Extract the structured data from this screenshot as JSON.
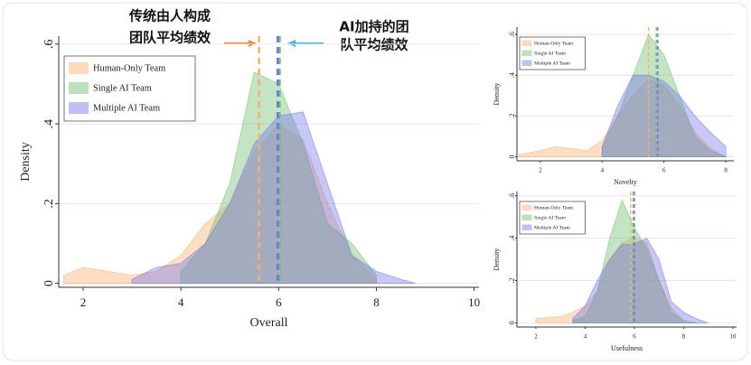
{
  "chart_data": [
    {
      "type": "density",
      "xlabel": "Overall",
      "ylabel": "Density",
      "annotations": [
        {
          "lines": [
            "传统由人构成",
            "团队平均绩效"
          ]
        },
        {
          "lines": [
            "AI加持的团",
            "队平均绩效"
          ]
        }
      ],
      "x": [
        1.6,
        2,
        2.5,
        3,
        3.5,
        4,
        4.5,
        5,
        5.5,
        6,
        6.5,
        7,
        7.5,
        8,
        8.5,
        8.8
      ],
      "series": [
        {
          "name": "Human-Only Team",
          "color": "#f7b06a",
          "mean": 5.6,
          "values": [
            0.02,
            0.04,
            0.03,
            0.02,
            0.03,
            0.07,
            0.15,
            0.2,
            0.33,
            0.4,
            0.36,
            0.2,
            0.07,
            0.01,
            null,
            null
          ]
        },
        {
          "name": "Single AI Team",
          "color": "#6cbf69",
          "mean": 6.02,
          "values": [
            null,
            null,
            null,
            null,
            null,
            0.03,
            0.1,
            0.25,
            0.53,
            0.5,
            0.35,
            0.15,
            0.1,
            0.02,
            null,
            null
          ]
        },
        {
          "name": "Multiple AI Team",
          "color": "#7474ee",
          "mean": 5.98,
          "values": [
            null,
            null,
            null,
            0.01,
            0.04,
            0.05,
            0.1,
            0.2,
            0.35,
            0.42,
            0.43,
            0.25,
            0.07,
            0.03,
            0.01,
            0
          ]
        }
      ],
      "xlim": [
        1.5,
        10.1
      ],
      "xticks": [
        2,
        4,
        6,
        8,
        10
      ],
      "ylim": [
        -0.01,
        0.62
      ],
      "yticks": [
        0,
        {
          "value": 0.2,
          "label": ".2"
        },
        {
          "value": 0.4,
          "label": ".4"
        },
        {
          "value": 0.6,
          "label": ".6"
        }
      ],
      "grid": true,
      "legend": "top-left"
    },
    {
      "type": "density",
      "xlabel": "Novelty",
      "ylabel": "Density",
      "x": [
        1.3,
        2,
        2.5,
        3,
        3.5,
        4,
        4.5,
        5,
        5.5,
        6,
        6.5,
        7,
        7.5,
        8
      ],
      "series": [
        {
          "name": "Human-Only Team",
          "color": "#f7b06a",
          "mean": 5.5,
          "values": [
            0.01,
            0.03,
            0.05,
            0.04,
            0.03,
            0.08,
            0.2,
            0.3,
            0.38,
            0.35,
            0.25,
            0.12,
            0.04,
            0
          ]
        },
        {
          "name": "Single AI Team",
          "color": "#6cbf69",
          "mean": 5.75,
          "values": [
            null,
            null,
            null,
            null,
            null,
            0.05,
            0.2,
            0.4,
            0.6,
            0.5,
            0.3,
            0.1,
            0.03,
            0
          ]
        },
        {
          "name": "Multiple AI Team",
          "color": "#7474ee",
          "mean": 5.8,
          "values": [
            null,
            null,
            null,
            null,
            null,
            0.05,
            0.25,
            0.4,
            0.4,
            0.37,
            0.3,
            0.2,
            0.12,
            0.05
          ]
        }
      ],
      "xlim": [
        1.24,
        8.26
      ],
      "xticks": [
        2,
        4,
        6,
        8
      ],
      "ylim": [
        -0.02,
        0.636
      ],
      "yticks": [
        0,
        {
          "value": 0.2,
          "label": ".2"
        },
        {
          "value": 0.4,
          "label": ".4"
        },
        {
          "value": 0.6,
          "label": ".6"
        }
      ],
      "grid": true,
      "legend": "top-left"
    },
    {
      "type": "density",
      "xlabel": "Usefulness",
      "ylabel": "Density",
      "x": [
        2,
        3,
        3.5,
        4,
        4.5,
        5,
        5.5,
        6,
        6.5,
        7,
        7.5,
        8,
        8.5,
        9
      ],
      "series": [
        {
          "name": "Human-Only Team",
          "color": "#f7b06a",
          "mean": 5.85,
          "values": [
            0.02,
            0.03,
            0.05,
            0.08,
            0.15,
            0.3,
            0.38,
            0.4,
            0.38,
            0.2,
            0.07,
            0.01,
            null,
            null
          ]
        },
        {
          "name": "Single AI Team",
          "color": "#6cbf69",
          "mean": 5.95,
          "values": [
            null,
            null,
            0.01,
            0.03,
            0.15,
            0.4,
            0.58,
            0.45,
            0.35,
            0.2,
            0.05,
            0.01,
            0,
            null
          ]
        },
        {
          "name": "Multiple AI Team",
          "color": "#7474ee",
          "mean": 6.0,
          "values": [
            null,
            null,
            0.02,
            0.08,
            0.2,
            0.3,
            0.37,
            0.37,
            0.4,
            0.3,
            0.1,
            0.05,
            0.02,
            0
          ]
        }
      ],
      "xlim": [
        1.23,
        10.15
      ],
      "xticks": [
        2,
        4,
        6,
        8,
        10
      ],
      "ylim": [
        -0.02,
        0.62
      ],
      "yticks": [
        0,
        {
          "value": 0.2,
          "label": ".2"
        },
        {
          "value": 0.4,
          "label": ".4"
        },
        {
          "value": 0.6,
          "label": ".6"
        }
      ],
      "grid": true,
      "legend": "top-left"
    }
  ]
}
